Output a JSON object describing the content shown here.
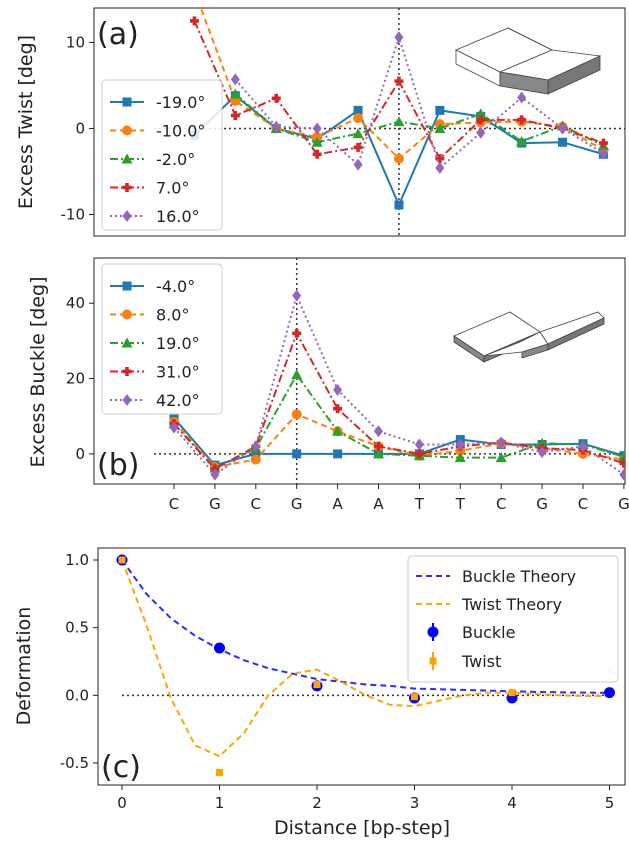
{
  "chart_data": [
    {
      "panel_label": "(a)",
      "type": "line",
      "ylabel": "Excess Twist [deg]",
      "ylim": [
        -12.5,
        14
      ],
      "yticks": [
        -10,
        0,
        10
      ],
      "x_categories": [
        "C",
        "G",
        "C",
        "G",
        "A",
        "A",
        "T",
        "T",
        "C",
        "G",
        "C",
        "G"
      ],
      "xticks_shown": false,
      "reference_lines": {
        "horizontal_y": 0,
        "vertical_x_index": 5
      },
      "legend_position": "left",
      "series": [
        {
          "name": "-19.0°",
          "color": "#1f77b4",
          "dash": "solid",
          "marker": "square",
          "values": [
            -0.8,
            3.8,
            0.0,
            -1.2,
            2.1,
            -8.9,
            2.1,
            1.4,
            -1.7,
            -1.6,
            -3.0
          ]
        },
        {
          "name": "-10.0°",
          "color": "#ff7f0e",
          "dash": "dashed",
          "marker": "circle",
          "values": [
            16,
            3.2,
            0.0,
            -1.0,
            1.2,
            -3.5,
            0.5,
            0.7,
            0.8,
            0.2,
            -2.5
          ]
        },
        {
          "name": "-2.0°",
          "color": "#2ca02c",
          "dash": "dashdot",
          "marker": "triangle",
          "values": [
            null,
            4.0,
            0.0,
            -1.6,
            -0.6,
            0.8,
            0.0,
            1.7,
            -1.5,
            0.3,
            -2.0
          ]
        },
        {
          "name": "7.0°",
          "color": "#d62728",
          "dash": "dashdot",
          "marker": "plus",
          "values": [
            12.5,
            1.5,
            3.5,
            -3.0,
            -2.2,
            5.5,
            -3.5,
            1.0,
            1.0,
            0.0,
            -1.7
          ]
        },
        {
          "name": "16.0°",
          "color": "#9467bd",
          "dash": "dotted",
          "marker": "diamond",
          "values": [
            null,
            5.7,
            0.2,
            0.0,
            -4.2,
            10.6,
            -4.6,
            -0.5,
            3.6,
            0.0,
            -2.9
          ]
        }
      ]
    },
    {
      "panel_label": "(b)",
      "type": "line",
      "ylabel": "Excess Buckle [deg]",
      "ylim": [
        -8,
        52
      ],
      "yticks": [
        0,
        20,
        40
      ],
      "x_categories": [
        "C",
        "G",
        "C",
        "G",
        "A",
        "A",
        "T",
        "T",
        "C",
        "G",
        "C",
        "G"
      ],
      "reference_lines": {
        "horizontal_y": 0,
        "vertical_x_index": 3
      },
      "legend_position": "top-left",
      "series": [
        {
          "name": "-4.0°",
          "color": "#1f77b4",
          "dash": "solid",
          "marker": "square",
          "values": [
            9.5,
            -3.0,
            0.0,
            0.0,
            0.0,
            0.0,
            0.0,
            3.8,
            2.5,
            2.5,
            2.7,
            -0.5
          ]
        },
        {
          "name": "8.0°",
          "color": "#ff7f0e",
          "dash": "dashed",
          "marker": "circle",
          "values": [
            8.5,
            -3.5,
            -1.5,
            10.5,
            6.0,
            2.0,
            -0.5,
            0.8,
            2.8,
            1.5,
            0.0,
            -1.5
          ]
        },
        {
          "name": "19.0°",
          "color": "#2ca02c",
          "dash": "dashdot",
          "marker": "triangle",
          "values": [
            8.0,
            -3.8,
            1.5,
            21.0,
            6.0,
            0.0,
            -0.5,
            -1.0,
            -1.0,
            2.8,
            2.5,
            -0.8
          ]
        },
        {
          "name": "31.0°",
          "color": "#d62728",
          "dash": "dashdot",
          "marker": "plus",
          "values": [
            8.0,
            -4.0,
            2.0,
            32.0,
            12.0,
            2.0,
            0.0,
            2.0,
            3.0,
            1.5,
            1.0,
            -2.5
          ]
        },
        {
          "name": "42.0°",
          "color": "#9467bd",
          "dash": "dotted",
          "marker": "diamond",
          "values": [
            7.0,
            -5.5,
            2.0,
            42.0,
            17.0,
            6.0,
            2.5,
            2.5,
            3.0,
            0.5,
            2.0,
            -5.5
          ]
        }
      ]
    },
    {
      "panel_label": "(c)",
      "type": "line",
      "xlabel": "Distance [bp-step]",
      "ylabel": "Deformation",
      "xlim": [
        -0.3,
        5.2
      ],
      "ylim": [
        -0.65,
        1.1
      ],
      "xticks": [
        0,
        1,
        2,
        3,
        4,
        5
      ],
      "yticks": [
        -0.5,
        0.0,
        0.5,
        1.0
      ],
      "reference_lines": {
        "horizontal_y": 0
      },
      "legend_position": "top-right",
      "theory": [
        {
          "name": "Buckle Theory",
          "color": "#2b2bff",
          "dash": "dashed",
          "x": [
            0,
            0.25,
            0.5,
            0.75,
            1,
            1.25,
            1.5,
            1.75,
            2,
            2.25,
            2.5,
            2.75,
            3,
            3.25,
            3.5,
            3.75,
            4,
            4.25,
            4.5,
            4.75,
            5
          ],
          "y": [
            1.0,
            0.75,
            0.57,
            0.44,
            0.34,
            0.26,
            0.2,
            0.16,
            0.12,
            0.1,
            0.08,
            0.07,
            0.05,
            0.045,
            0.04,
            0.035,
            0.03,
            0.025,
            0.022,
            0.02,
            0.018
          ]
        },
        {
          "name": "Twist Theory",
          "color": "#ffa500",
          "dash": "dashed",
          "x": [
            0,
            0.25,
            0.5,
            0.75,
            1,
            1.25,
            1.5,
            1.75,
            2,
            2.25,
            2.5,
            2.75,
            3,
            3.25,
            3.5,
            3.75,
            4,
            4.25,
            4.5,
            4.75,
            5
          ],
          "y": [
            1.0,
            0.52,
            -0.02,
            -0.37,
            -0.45,
            -0.28,
            0.0,
            0.16,
            0.19,
            0.1,
            0.0,
            -0.07,
            -0.08,
            -0.04,
            0.0,
            0.02,
            0.02,
            0.01,
            0.0,
            -0.005,
            -0.005
          ]
        }
      ],
      "measured": [
        {
          "name": "Buckle",
          "color": "#0000ff",
          "marker": "circle",
          "x": [
            0,
            1,
            2,
            3,
            4,
            5
          ],
          "y": [
            1.0,
            0.35,
            0.07,
            -0.02,
            -0.02,
            0.02
          ]
        },
        {
          "name": "Twist",
          "color": "#ffa500",
          "marker": "square",
          "x": [
            0,
            1,
            2,
            3,
            4,
            5
          ],
          "y": [
            1.0,
            -0.57,
            0.08,
            -0.01,
            0.02,
            0.18
          ]
        }
      ]
    }
  ]
}
